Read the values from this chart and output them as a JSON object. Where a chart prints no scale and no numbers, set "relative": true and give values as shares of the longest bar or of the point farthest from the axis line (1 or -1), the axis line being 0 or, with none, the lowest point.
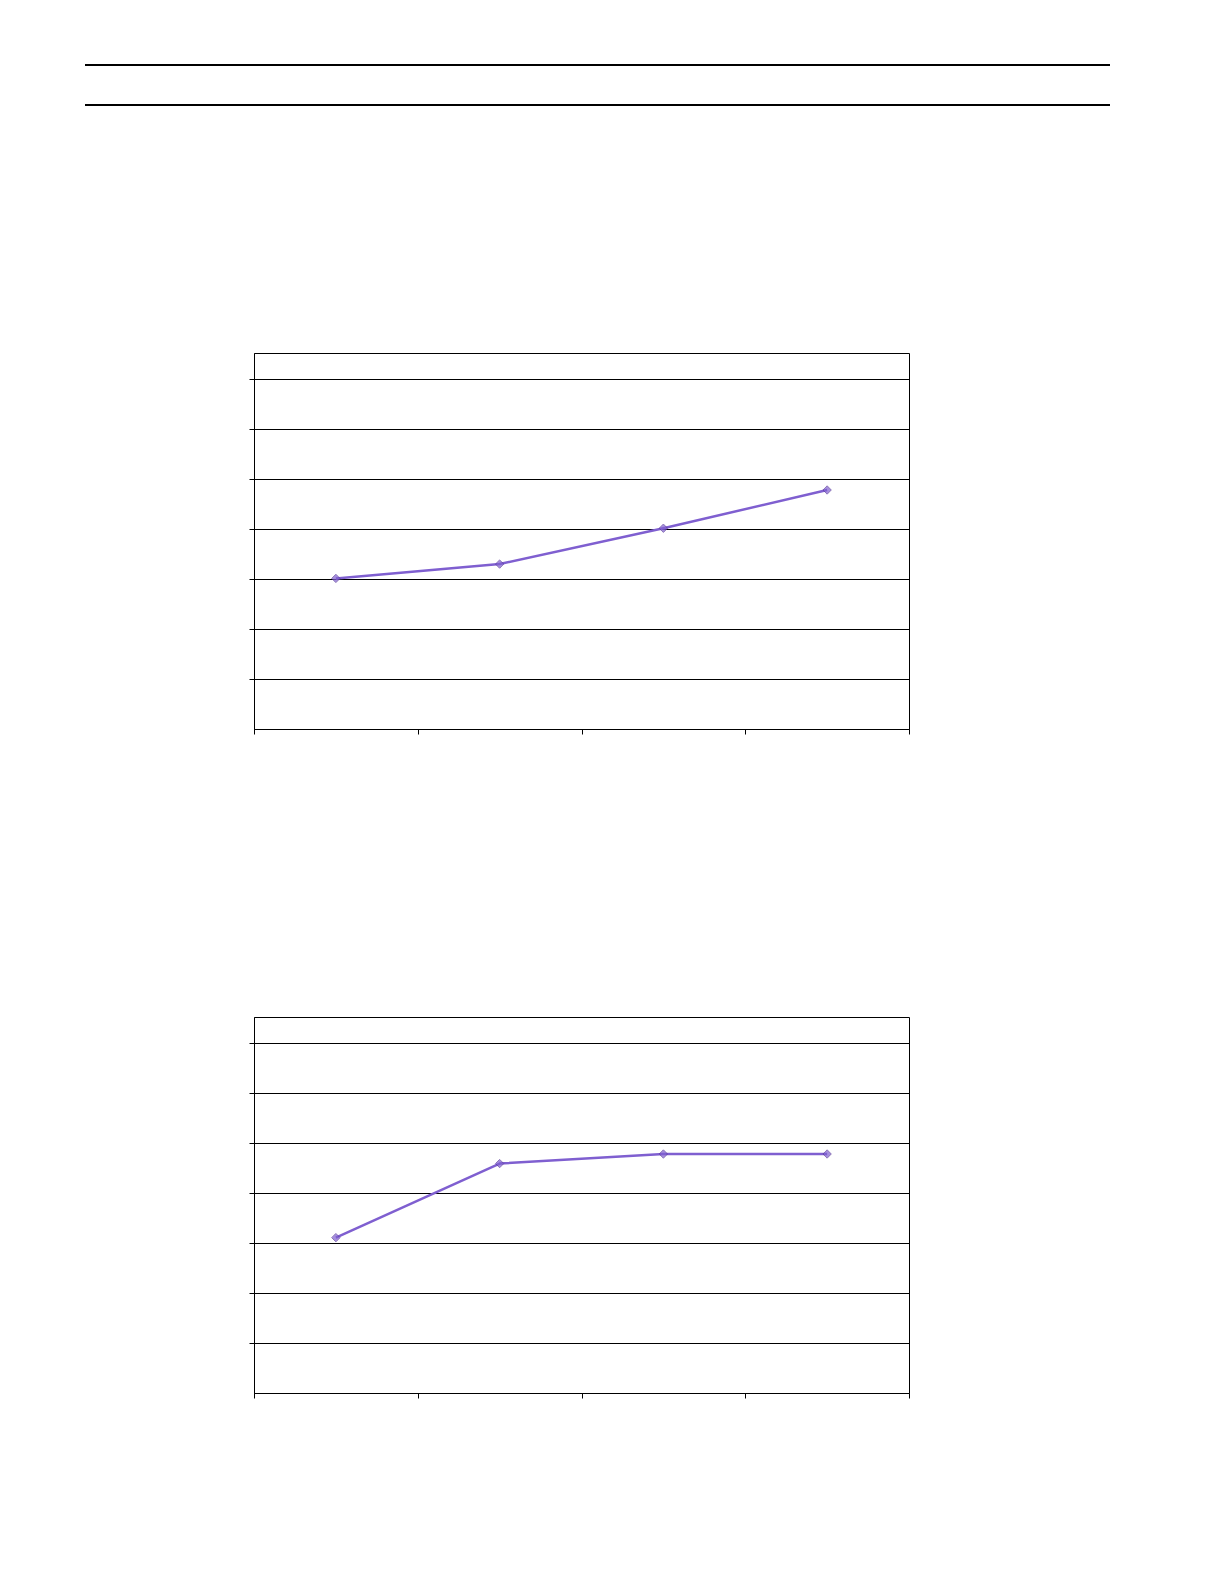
{
  "chart_data": [
    {
      "type": "line",
      "categories": [
        null,
        null,
        null,
        null
      ],
      "relative": true,
      "grid": "y",
      "marker": "diamond",
      "tick_labels": false,
      "series": [
        {
          "color": "#7f5fd0",
          "values": [
            0.63,
            0.69,
            0.84,
            1.0
          ]
        }
      ]
    },
    {
      "type": "line",
      "categories": [
        null,
        null,
        null,
        null
      ],
      "relative": true,
      "grid": "y",
      "marker": "diamond",
      "tick_labels": false,
      "series": [
        {
          "color": "#7f5fd0",
          "values": [
            0.65,
            0.96,
            1.0,
            1.0
          ]
        }
      ]
    }
  ]
}
